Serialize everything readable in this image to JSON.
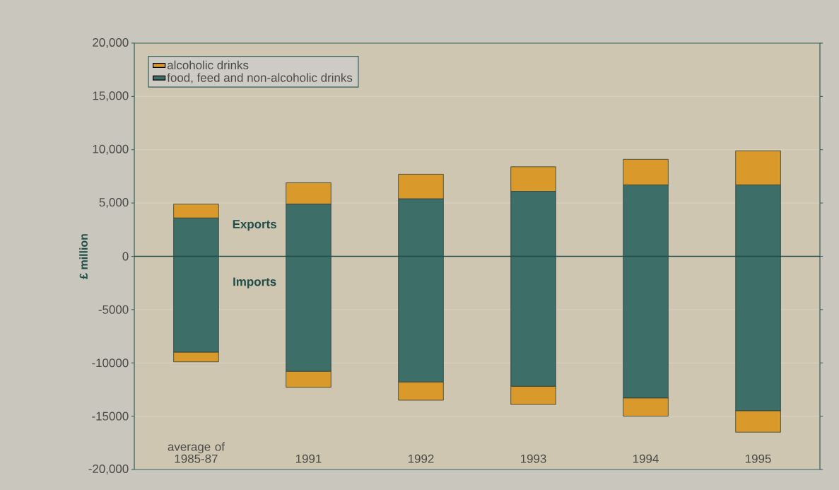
{
  "chart_data": {
    "type": "bar",
    "stacked": true,
    "ylabel": "£ million",
    "categories": [
      "average of 1985-87",
      "1991",
      "1992",
      "1993",
      "1994",
      "1995"
    ],
    "series": [
      {
        "name": "food, feed and non-alcoholic drinks",
        "color": "#3d6e68",
        "values": [
          3600,
          4900,
          5400,
          6100,
          6700,
          6700
        ]
      },
      {
        "name": "alcoholic drinks",
        "color": "#d99a2b",
        "values": [
          1300,
          2000,
          2300,
          2300,
          2400,
          3200
        ]
      },
      {
        "color": "#3d6e68",
        "values": [
          -9000,
          -10800,
          -11800,
          -12200,
          -13300,
          -14500
        ]
      },
      {
        "color": "#d99a2b",
        "values": [
          -900,
          -1500,
          -1700,
          -1700,
          -1700,
          -2000
        ]
      }
    ],
    "ylim": [
      -20000,
      20000
    ],
    "yticks": [
      {
        "value": -20000,
        "label": "-20,000"
      },
      {
        "value": -15000,
        "label": "-15000"
      },
      {
        "value": -10000,
        "label": "-10000"
      },
      {
        "value": -5000,
        "label": "-5000"
      },
      0,
      {
        "value": 5000,
        "label": "5,000"
      },
      {
        "value": 10000,
        "label": "10,000"
      },
      {
        "value": 15000,
        "label": "15,000"
      },
      {
        "value": 20000,
        "label": "20,000"
      }
    ],
    "ref_lines": [
      {
        "axis": "y",
        "value": 0,
        "color": "#1f4d47"
      }
    ],
    "annotations": [
      "Exports",
      "Imports"
    ],
    "grid": "y",
    "legend": "top left"
  }
}
